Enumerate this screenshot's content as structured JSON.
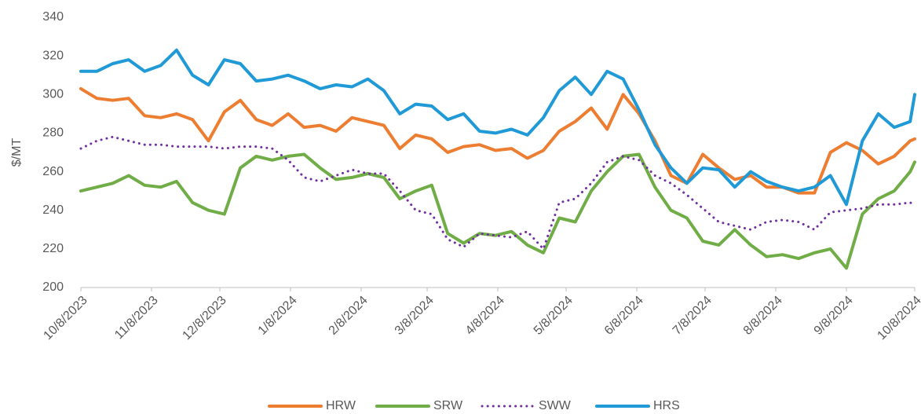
{
  "chart_data": {
    "type": "line",
    "y_label": "$/MT",
    "x": [
      "10/8/2023",
      "10/15/2023",
      "10/22/2023",
      "10/29/2023",
      "11/5/2023",
      "11/12/2023",
      "11/19/2023",
      "11/26/2023",
      "12/3/2023",
      "12/10/2023",
      "12/17/2023",
      "12/24/2023",
      "12/31/2023",
      "1/7/2024",
      "1/14/2024",
      "1/21/2024",
      "1/28/2024",
      "2/4/2024",
      "2/11/2024",
      "2/18/2024",
      "2/25/2024",
      "3/3/2024",
      "3/10/2024",
      "3/17/2024",
      "3/24/2024",
      "3/31/2024",
      "4/7/2024",
      "4/14/2024",
      "4/21/2024",
      "4/28/2024",
      "5/5/2024",
      "5/12/2024",
      "5/19/2024",
      "5/26/2024",
      "6/2/2024",
      "6/9/2024",
      "6/16/2024",
      "6/23/2024",
      "6/30/2024",
      "7/7/2024",
      "7/14/2024",
      "7/21/2024",
      "7/28/2024",
      "8/4/2024",
      "8/11/2024",
      "8/18/2024",
      "8/25/2024",
      "9/1/2024",
      "9/8/2024",
      "9/15/2024",
      "9/22/2024",
      "9/29/2024",
      "10/6/2024",
      "10/8/2024"
    ],
    "series": [
      {
        "name": "HRW",
        "color": "#ed7d31",
        "style": "solid",
        "values": [
          303,
          298,
          297,
          298,
          289,
          288,
          290,
          287,
          276,
          291,
          297,
          287,
          284,
          290,
          283,
          284,
          281,
          288,
          286,
          284,
          272,
          279,
          277,
          270,
          273,
          274,
          271,
          272,
          267,
          271,
          281,
          286,
          293,
          282,
          300,
          290,
          276,
          258,
          254,
          269,
          262,
          256,
          258,
          252,
          252,
          249,
          249,
          270,
          275,
          271,
          264,
          268,
          276,
          277
        ]
      },
      {
        "name": "SRW",
        "color": "#70ad47",
        "style": "solid",
        "values": [
          250,
          252,
          254,
          258,
          253,
          252,
          255,
          244,
          240,
          238,
          262,
          268,
          266,
          268,
          269,
          262,
          256,
          257,
          259,
          257,
          246,
          250,
          253,
          228,
          223,
          228,
          227,
          229,
          222,
          218,
          236,
          234,
          250,
          260,
          268,
          269,
          252,
          240,
          236,
          224,
          222,
          230,
          222,
          216,
          217,
          215,
          218,
          220,
          210,
          238,
          246,
          250,
          260,
          265
        ]
      },
      {
        "name": "SWW",
        "color": "#7030a0",
        "style": "dotted",
        "values": [
          272,
          276,
          278,
          276,
          274,
          274,
          273,
          273,
          273,
          272,
          273,
          273,
          272,
          266,
          257,
          255,
          258,
          261,
          259,
          259,
          250,
          240,
          238,
          225,
          221,
          228,
          227,
          226,
          229,
          220,
          244,
          246,
          254,
          265,
          268,
          266,
          258,
          254,
          248,
          241,
          234,
          232,
          230,
          234,
          235,
          234,
          230,
          239,
          240,
          241,
          243,
          243,
          244,
          243
        ]
      },
      {
        "name": "HRS",
        "color": "#1f9ad6",
        "style": "solid",
        "values": [
          312,
          312,
          316,
          318,
          312,
          315,
          323,
          310,
          305,
          318,
          316,
          307,
          308,
          310,
          307,
          303,
          305,
          304,
          308,
          302,
          290,
          295,
          294,
          287,
          290,
          281,
          280,
          282,
          279,
          288,
          302,
          309,
          300,
          312,
          308,
          292,
          274,
          262,
          254,
          262,
          261,
          252,
          260,
          255,
          252,
          250,
          252,
          258,
          243,
          276,
          290,
          283,
          286,
          300
        ]
      }
    ],
    "xlim": [
      "10/8/2023",
      "10/8/2024"
    ],
    "xticks": [
      "10/8/2023",
      "11/8/2023",
      "12/8/2023",
      "1/8/2024",
      "2/8/2024",
      "3/8/2024",
      "4/8/2024",
      "5/8/2024",
      "6/8/2024",
      "7/8/2024",
      "8/8/2024",
      "9/8/2024",
      "10/8/2024"
    ],
    "ylim": [
      200,
      340
    ],
    "yticks": [
      200,
      220,
      240,
      260,
      280,
      300,
      320,
      340
    ],
    "grid": false,
    "legend": "bottom"
  }
}
